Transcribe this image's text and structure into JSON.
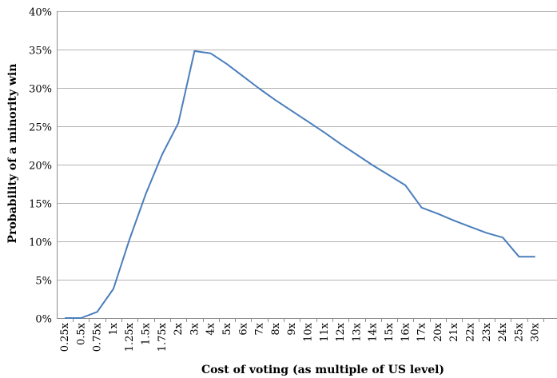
{
  "chart_data": {
    "type": "line",
    "title": "",
    "xlabel": "Cost of voting (as multiple of US level)",
    "ylabel": "Probability of a minority win",
    "ylim": [
      0,
      40
    ],
    "yticks": [
      "0%",
      "5%",
      "10%",
      "15%",
      "20%",
      "25%",
      "30%",
      "35%",
      "40%"
    ],
    "grid": "horizontal",
    "legend": "none",
    "line_color": "#4a7ebb",
    "grid_color": "#b3b3b3",
    "categories": [
      "0.25x",
      "0.5x",
      "0.75x",
      "1x",
      "1.25x",
      "1.5x",
      "1.75x",
      "2x",
      "3x",
      "4x",
      "5x",
      "6x",
      "7x",
      "8x",
      "9x",
      "10x",
      "11x",
      "12x",
      "13x",
      "14x",
      "15x",
      "16x",
      "17x",
      "20x",
      "21x",
      "22x",
      "23x",
      "24x",
      "25x",
      "30x"
    ],
    "series": [
      {
        "values": [
          0.0,
          0.0,
          0.8,
          3.8,
          10.3,
          16.2,
          21.3,
          25.4,
          34.8,
          34.5,
          33.1,
          31.5,
          29.9,
          28.4,
          27.0,
          25.6,
          24.2,
          22.7,
          21.3,
          19.9,
          18.6,
          17.3,
          14.4,
          13.6,
          12.7,
          11.9,
          11.1,
          10.5,
          8.0,
          8.0
        ]
      }
    ]
  }
}
